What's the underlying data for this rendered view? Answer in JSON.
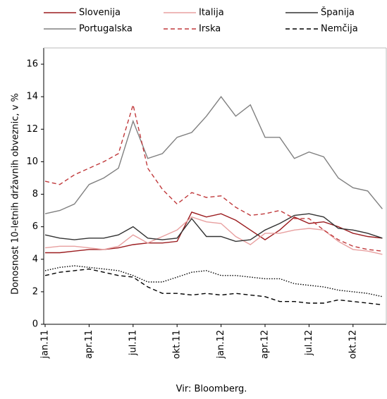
{
  "chart_data": {
    "type": "line",
    "y_label": "Donosnost 10-letnih državnih obveznic, v %",
    "note": "Vir: Bloomberg.",
    "categories": [
      "jan.11",
      null,
      null,
      "apr.11",
      null,
      null,
      "jul.11",
      null,
      null,
      "okt.11",
      null,
      null,
      "jan.12",
      null,
      null,
      "apr.12",
      null,
      null,
      "jul.12",
      null,
      null,
      "okt.12",
      null,
      null
    ],
    "ylim": [
      0,
      17
    ],
    "yticks": [
      0,
      2,
      4,
      6,
      8,
      10,
      12,
      14,
      16
    ],
    "series": [
      {
        "name": "Slovenija",
        "color": "#9b1c1f",
        "dash": "solid",
        "values": [
          4.4,
          4.4,
          4.5,
          4.6,
          4.6,
          4.7,
          4.9,
          5.0,
          5.0,
          5.1,
          6.9,
          6.6,
          6.8,
          6.4,
          5.8,
          5.2,
          5.8,
          6.6,
          6.2,
          6.3,
          6.0,
          5.6,
          5.4,
          5.3
        ]
      },
      {
        "name": "Italija",
        "color": "#e8a0a0",
        "dash": "solid",
        "values": [
          4.7,
          4.8,
          4.8,
          4.7,
          4.6,
          4.8,
          5.5,
          5.0,
          5.4,
          5.8,
          6.6,
          6.3,
          6.2,
          5.4,
          4.9,
          5.6,
          5.6,
          5.8,
          5.9,
          5.8,
          5.1,
          4.6,
          4.5,
          4.3
        ]
      },
      {
        "name": "Španija",
        "color": "#333333",
        "dash": "solid",
        "values": [
          5.5,
          5.3,
          5.2,
          5.3,
          5.3,
          5.5,
          6.0,
          5.3,
          5.2,
          5.3,
          6.5,
          5.4,
          5.4,
          5.1,
          5.2,
          5.8,
          6.2,
          6.7,
          6.8,
          6.6,
          5.9,
          5.8,
          5.6,
          5.3
        ]
      },
      {
        "name": "Portugalska",
        "color": "#808080",
        "dash": "solid",
        "values": [
          6.8,
          7.0,
          7.4,
          8.6,
          9.0,
          9.6,
          12.5,
          10.2,
          10.5,
          11.5,
          11.8,
          12.8,
          14.0,
          12.8,
          13.5,
          11.5,
          11.5,
          10.2,
          10.6,
          10.3,
          9.0,
          8.4,
          8.2,
          7.1
        ]
      },
      {
        "name": "Irska",
        "color": "#c0393b",
        "dash": "dashed",
        "values": [
          8.8,
          8.6,
          9.2,
          9.6,
          10.0,
          10.5,
          13.5,
          9.6,
          8.3,
          7.4,
          8.1,
          7.8,
          7.9,
          7.2,
          6.7,
          6.8,
          7.0,
          6.5,
          6.5,
          5.8,
          5.2,
          4.8,
          4.6,
          4.5
        ]
      },
      {
        "name": "Nemčija",
        "color": "#000000",
        "dash": "dashed",
        "values": [
          3.0,
          3.2,
          3.3,
          3.4,
          3.2,
          3.0,
          2.9,
          2.3,
          1.9,
          1.9,
          1.8,
          1.9,
          1.8,
          1.9,
          1.8,
          1.7,
          1.4,
          1.4,
          1.3,
          1.3,
          1.5,
          1.4,
          1.3,
          1.2
        ]
      },
      {
        "color": "#000000",
        "dash": "dotted",
        "values": [
          3.3,
          3.5,
          3.6,
          3.5,
          3.4,
          3.3,
          3.0,
          2.6,
          2.6,
          2.9,
          3.2,
          3.3,
          3.0,
          3.0,
          2.9,
          2.8,
          2.8,
          2.5,
          2.4,
          2.3,
          2.1,
          2.0,
          1.9,
          1.7
        ]
      }
    ]
  }
}
